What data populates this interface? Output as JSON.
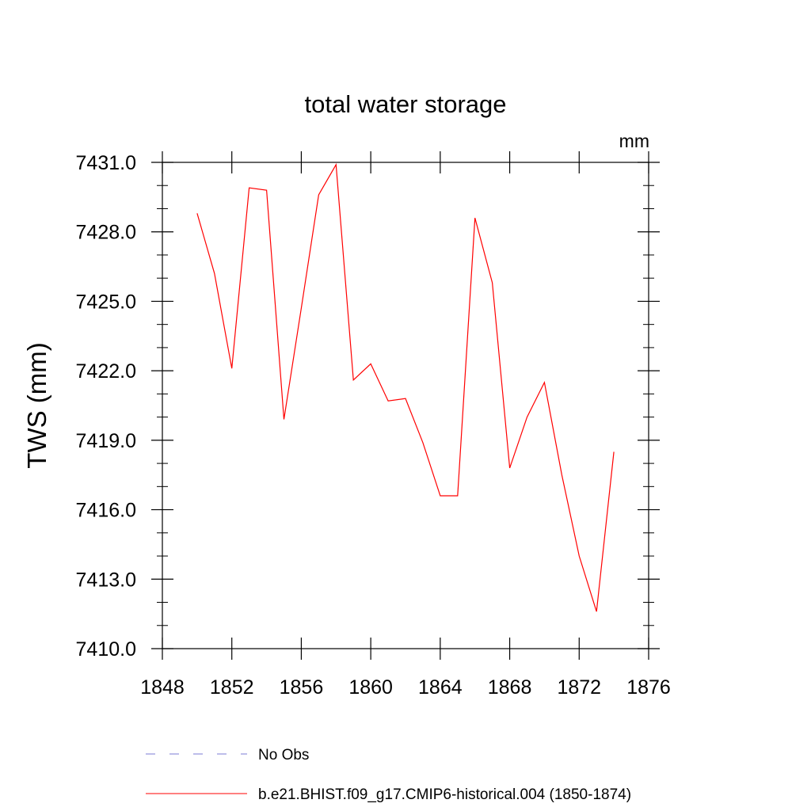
{
  "chart_data": {
    "type": "line",
    "title": "total water storage",
    "units_label": "mm",
    "ylabel": "TWS  (mm)",
    "xlabel": "",
    "xlim": [
      1848,
      1876
    ],
    "ylim": [
      7410.0,
      7431.0
    ],
    "x_ticks": [
      1848,
      1852,
      1856,
      1860,
      1864,
      1868,
      1872,
      1876
    ],
    "x_tick_labels": [
      "1848",
      "1852",
      "1856",
      "1860",
      "1864",
      "1868",
      "1872",
      "1876"
    ],
    "y_ticks": [
      7410.0,
      7413.0,
      7416.0,
      7419.0,
      7422.0,
      7425.0,
      7428.0,
      7431.0
    ],
    "y_tick_labels": [
      "7410.0",
      "7413.0",
      "7416.0",
      "7419.0",
      "7422.0",
      "7425.0",
      "7428.0",
      "7431.0"
    ],
    "grid": false,
    "legend_position": "bottom",
    "series": [
      {
        "name": "No Obs",
        "color": "#7b7bd6",
        "style": "dashed",
        "x": [],
        "values": []
      },
      {
        "name": "b.e21.BHIST.f09_g17.CMIP6-historical.004 (1850-1874)",
        "color": "#ff0000",
        "style": "solid",
        "x": [
          1850,
          1851,
          1852,
          1853,
          1854,
          1855,
          1856,
          1857,
          1858,
          1859,
          1860,
          1861,
          1862,
          1863,
          1864,
          1865,
          1866,
          1867,
          1868,
          1869,
          1870,
          1871,
          1872,
          1873,
          1874
        ],
        "values": [
          7428.8,
          7426.2,
          7422.1,
          7429.9,
          7429.8,
          7419.9,
          7424.7,
          7429.6,
          7430.9,
          7421.6,
          7422.3,
          7420.7,
          7420.8,
          7418.9,
          7416.6,
          7416.6,
          7428.6,
          7425.8,
          7417.8,
          7420.0,
          7421.5,
          7417.5,
          7414.0,
          7411.6,
          7418.5
        ]
      }
    ]
  }
}
